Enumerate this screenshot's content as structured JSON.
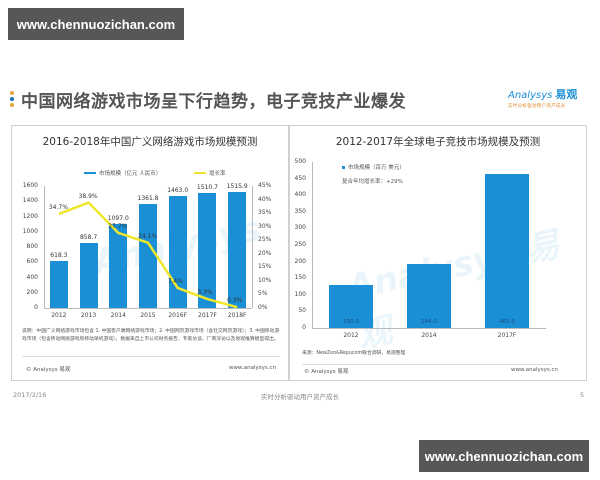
{
  "watermarks": {
    "top": "www.chennuozichan.com",
    "bottom": "www.chennuozichan.com"
  },
  "slide": {
    "title": "中国网络游戏市场呈下行趋势，电子竞技产业爆发",
    "bullet_colors": [
      "#e8a33a",
      "#1a6fb5",
      "#e8a33a"
    ],
    "logo": {
      "brand": "Analysys",
      "brand_cn": "易观",
      "tagline": "实时分析驱动用户资产成长"
    }
  },
  "footer": {
    "date": "2017/2/16",
    "center": "实时分析驱动用户资产成长",
    "page": "5"
  },
  "colors": {
    "bar": "#1a8fd6",
    "line": "#f0e62a",
    "panel_border": "#d0d0d0"
  },
  "left_panel": {
    "note": "说明：中国广义网络游戏市场包含 1. 中国客户端网络游戏市场；2. 中国网页游戏市场（含社交网页游戏）；3. 中国移动游戏市场（包含移动网络游戏和移动单机游戏）。数据来自上市公司财务报告、专家访谈、厂商深访以及易观推算模型得出。",
    "copyright": "© Analysys 易观",
    "website": "www.analysys.cn",
    "y_left_ticks": [
      "1600",
      "1400",
      "1200",
      "1000",
      "800",
      "600",
      "400",
      "200",
      "0"
    ],
    "y_right_ticks": [
      "45%",
      "40%",
      "35%",
      "30%",
      "25%",
      "20%",
      "15%",
      "10%",
      "5%",
      "0%"
    ]
  },
  "right_panel": {
    "cagr_note": "复合年均增长率：+29%",
    "source": "来源：NewZoo&Repucom联合调研，易观整理",
    "copyright": "© Analysys 易观",
    "website": "www.analysys.cn",
    "y_ticks": [
      "500",
      "450",
      "400",
      "350",
      "300",
      "250",
      "200",
      "150",
      "100",
      "50",
      "0"
    ]
  },
  "chart_data": [
    {
      "type": "bar",
      "title": "2016-2018年中国广义网络游戏市场规模预测",
      "categories": [
        "2012",
        "2013",
        "2014",
        "2015",
        "2016F",
        "2017F",
        "2018F"
      ],
      "series": [
        {
          "name": "市场规模（亿元 人民币）",
          "type": "bar",
          "axis": "left",
          "values": [
            618.3,
            858.7,
            1097.0,
            1361.8,
            1463.0,
            1510.7,
            1515.9
          ]
        },
        {
          "name": "增长率",
          "type": "line",
          "axis": "right",
          "values": [
            34.7,
            38.9,
            27.7,
            24.1,
            7.4,
            3.3,
            0.3
          ],
          "labels": [
            "34.7%",
            "38.9%",
            "27.7%",
            "24.1%",
            "7.4%",
            "3.3%",
            "0.3%"
          ]
        }
      ],
      "xlabel": "",
      "ylabel": "",
      "ylim": [
        0,
        1600
      ],
      "y2lim": [
        0,
        45
      ],
      "legend_position": "top",
      "grid": false
    },
    {
      "type": "bar",
      "title": "2012-2017年全球电子竞技市场规模及预测",
      "categories": [
        "2012",
        "2014",
        "2017F"
      ],
      "series": [
        {
          "name": "市场规模（百万 美元）",
          "values": [
            130.0,
            194.0,
            465.0
          ]
        }
      ],
      "annotations": [
        "复合年均增长率：+29%"
      ],
      "xlabel": "",
      "ylabel": "",
      "ylim": [
        0,
        500
      ],
      "legend_position": "top-left",
      "grid": false
    }
  ]
}
